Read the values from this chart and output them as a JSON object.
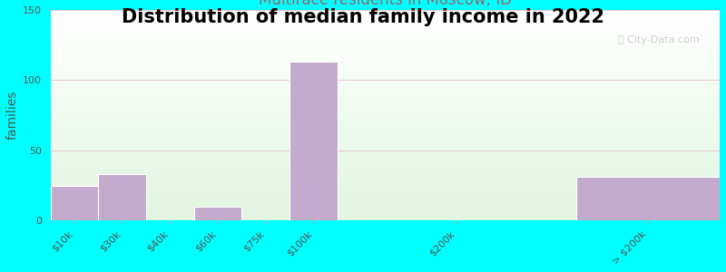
{
  "title": "Distribution of median family income in 2022",
  "subtitle": "Multirace residents in Moscow, ID",
  "ylabel": "families",
  "background_color": "#00FFFF",
  "bar_color": "#C4AACC",
  "bar_edge_color": "#FFFFFF",
  "categories": [
    "$10k",
    "$30k",
    "$40k",
    "$60k",
    "$75k",
    "$100k",
    "$200k",
    "> $200k"
  ],
  "values": [
    25,
    33,
    0,
    10,
    0,
    113,
    0,
    31
  ],
  "bar_lefts": [
    0,
    1,
    2,
    3,
    4,
    5,
    8,
    11
  ],
  "bar_widths": [
    1,
    1,
    1,
    1,
    1,
    1,
    1,
    3
  ],
  "xlim": [
    0,
    14
  ],
  "ylim": [
    0,
    150
  ],
  "yticks": [
    0,
    50,
    100,
    150
  ],
  "xtick_positions": [
    0.5,
    1.5,
    2.5,
    3.5,
    4.5,
    5.5,
    8.5,
    12.5
  ],
  "title_fontsize": 15,
  "subtitle_fontsize": 12,
  "subtitle_color": "#996666",
  "ylabel_fontsize": 10,
  "tick_fontsize": 8,
  "watermark": "ⓘ City-Data.com"
}
